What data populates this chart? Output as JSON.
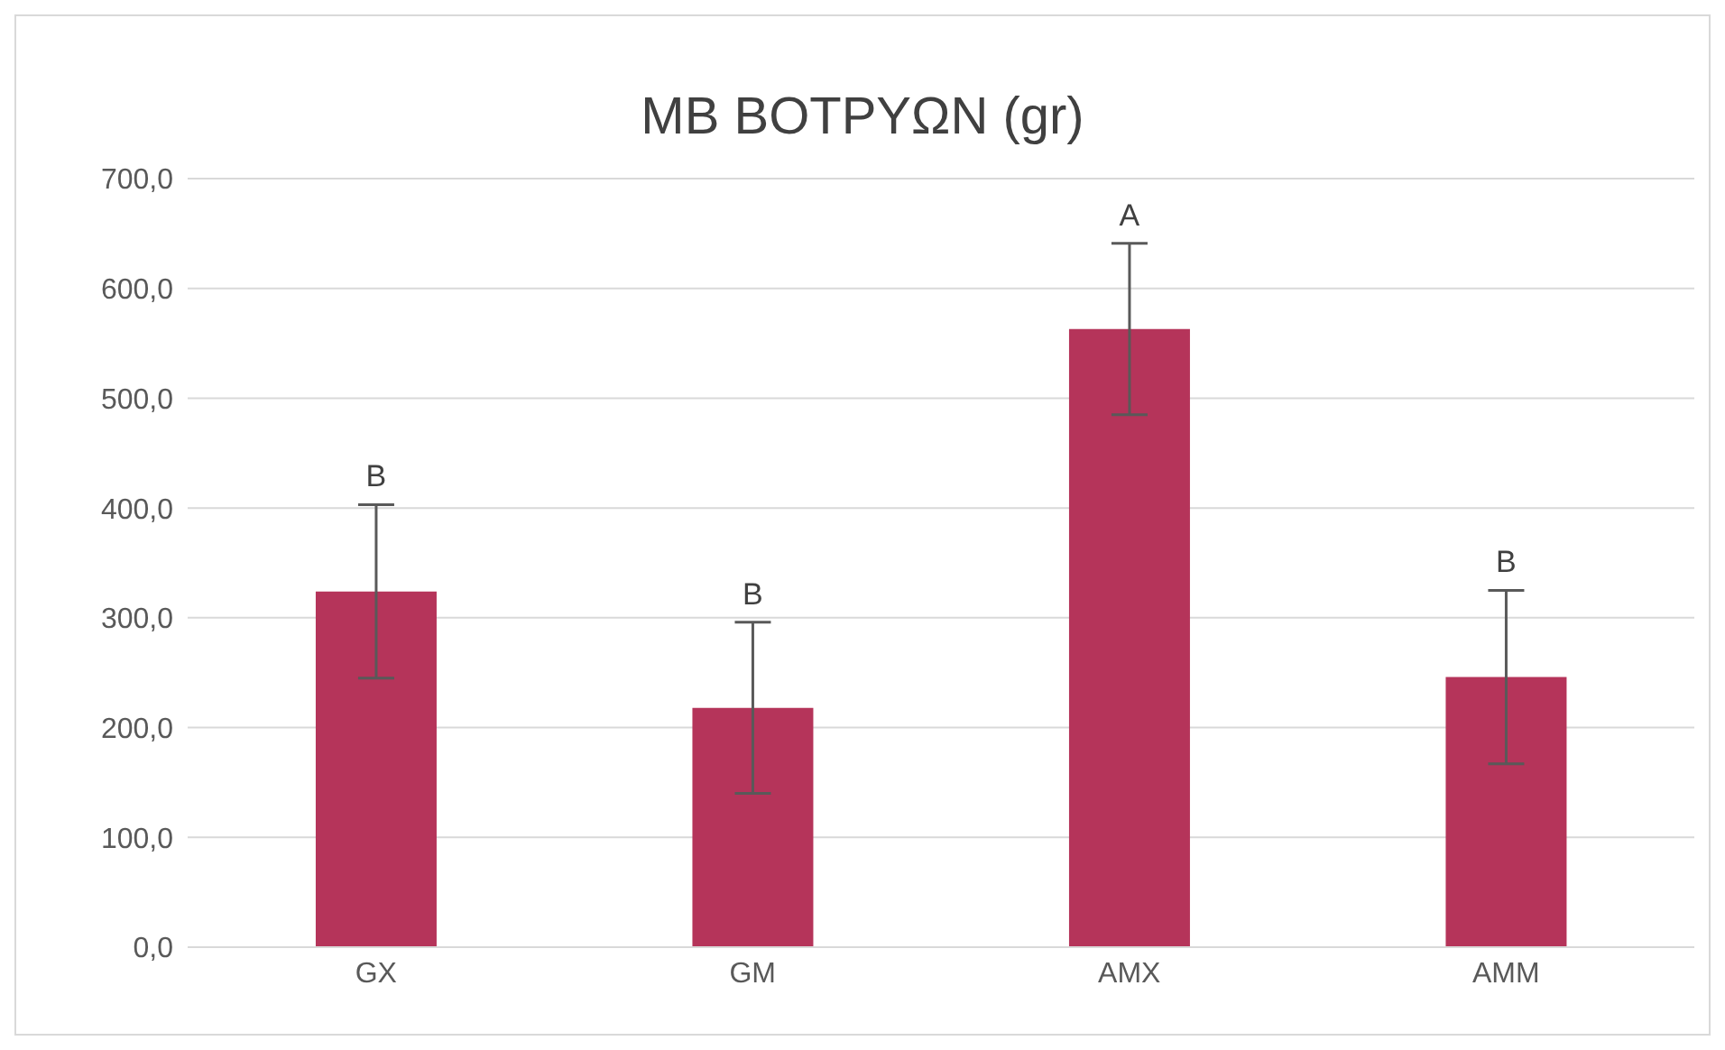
{
  "chart_data": {
    "type": "bar",
    "title": "MB BOTPYΩN (gr)",
    "categories": [
      "GX",
      "GM",
      "AMX",
      "AMM"
    ],
    "values": [
      324,
      218,
      563,
      246
    ],
    "errors": [
      79,
      78,
      78,
      79
    ],
    "color": "#b5345a",
    "ylim": [
      0,
      700
    ],
    "yticks": [
      {
        "value": 0,
        "label": "0,0"
      },
      {
        "value": 100,
        "label": "100,0"
      },
      {
        "value": 200,
        "label": "200,0"
      },
      {
        "value": 300,
        "label": "300,0"
      },
      {
        "value": 400,
        "label": "400,0"
      },
      {
        "value": 500,
        "label": "500,0"
      },
      {
        "value": 600,
        "label": "600,0"
      },
      {
        "value": 700,
        "label": "700,0"
      }
    ],
    "grid": "y",
    "annotations": [
      {
        "text": "B",
        "x": "GX",
        "y": 403
      },
      {
        "text": "B",
        "x": "GM",
        "y": 296
      },
      {
        "text": "A",
        "x": "AMX",
        "y": 641
      },
      {
        "text": "B",
        "x": "AMM",
        "y": 325
      }
    ]
  }
}
